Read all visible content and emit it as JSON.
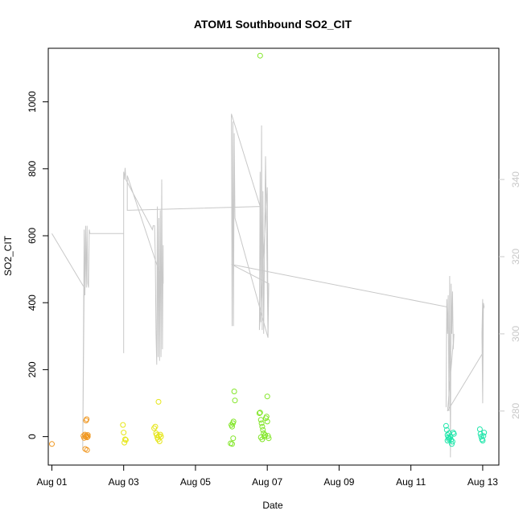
{
  "chart_data": {
    "type": "scatter",
    "title": "ATOM1 Southbound SO2_CIT",
    "xlabel": "Date",
    "ylabel": "SO2_CIT",
    "xlim": [
      -0.1,
      12.45
    ],
    "ylim": [
      -85,
      1160
    ],
    "x_ticks": [
      {
        "v": 0,
        "label": "Aug 01"
      },
      {
        "v": 2,
        "label": "Aug 03"
      },
      {
        "v": 4,
        "label": "Aug 05"
      },
      {
        "v": 6,
        "label": "Aug 07"
      },
      {
        "v": 8,
        "label": "Aug 09"
      },
      {
        "v": 10,
        "label": "Aug 11"
      },
      {
        "v": 12,
        "label": "Aug 13"
      }
    ],
    "y_ticks": [
      0,
      200,
      400,
      600,
      800,
      1000
    ],
    "y2lim": [
      266,
      374
    ],
    "y2_ticks": [
      280,
      300,
      320,
      340
    ],
    "legend": "none",
    "grid": false,
    "scatter_series": [
      {
        "color": "#f0961e",
        "points": [
          [
            0.0,
            -22
          ],
          [
            0.88,
            2
          ],
          [
            0.9,
            -4
          ],
          [
            0.92,
            6
          ],
          [
            0.94,
            0
          ],
          [
            0.96,
            3
          ],
          [
            0.98,
            -2
          ],
          [
            1.0,
            5
          ],
          [
            0.93,
            -37
          ],
          [
            0.98,
            -40
          ],
          [
            0.95,
            48
          ],
          [
            0.97,
            52
          ],
          [
            1.0,
            0
          ]
        ]
      },
      {
        "color": "#e6e619",
        "points": [
          [
            1.98,
            35
          ],
          [
            2.0,
            12
          ],
          [
            2.02,
            -18
          ],
          [
            2.04,
            -8
          ],
          [
            2.06,
            -10
          ],
          [
            2.85,
            25
          ],
          [
            2.88,
            30
          ],
          [
            2.9,
            10
          ],
          [
            2.92,
            5
          ],
          [
            2.94,
            -3
          ],
          [
            2.96,
            -8
          ],
          [
            2.98,
            2
          ],
          [
            3.0,
            -14
          ],
          [
            3.02,
            6
          ],
          [
            3.04,
            0
          ],
          [
            2.97,
            104
          ]
        ]
      },
      {
        "color": "#82e628",
        "points": [
          [
            5.0,
            35
          ],
          [
            5.02,
            30
          ],
          [
            5.04,
            40
          ],
          [
            5.06,
            45
          ],
          [
            5.08,
            135
          ],
          [
            5.1,
            108
          ],
          [
            4.98,
            -20
          ],
          [
            5.02,
            -22
          ],
          [
            5.05,
            -5
          ],
          [
            5.8,
            1138
          ],
          [
            5.78,
            70
          ],
          [
            5.8,
            72
          ],
          [
            5.82,
            50
          ],
          [
            5.84,
            40
          ],
          [
            5.86,
            30
          ],
          [
            5.88,
            20
          ],
          [
            5.9,
            10
          ],
          [
            5.92,
            0
          ],
          [
            5.94,
            5
          ],
          [
            5.96,
            55
          ],
          [
            5.98,
            60
          ],
          [
            6.0,
            120
          ],
          [
            6.02,
            2
          ],
          [
            6.04,
            -5
          ],
          [
            5.82,
            -2
          ],
          [
            5.86,
            -8
          ],
          [
            6.0,
            45
          ]
        ]
      },
      {
        "color": "#1ee6aa",
        "points": [
          [
            10.98,
            32
          ],
          [
            11.0,
            20
          ],
          [
            11.02,
            5
          ],
          [
            11.04,
            -2
          ],
          [
            11.06,
            10
          ],
          [
            11.08,
            -5
          ],
          [
            11.1,
            0
          ],
          [
            11.12,
            -10
          ],
          [
            11.14,
            -22
          ],
          [
            11.16,
            -15
          ],
          [
            11.18,
            12
          ],
          [
            11.2,
            8
          ],
          [
            11.02,
            -12
          ],
          [
            11.06,
            -8
          ],
          [
            11.92,
            22
          ],
          [
            11.94,
            8
          ],
          [
            11.96,
            0
          ],
          [
            11.98,
            -8
          ],
          [
            12.0,
            -12
          ],
          [
            12.02,
            2
          ],
          [
            12.04,
            12
          ]
        ]
      }
    ],
    "line_series": {
      "color": "#c8c8c8",
      "axis": "right",
      "points": [
        [
          0.0,
          326
        ],
        [
          0.9,
          312
        ],
        [
          0.9,
          312
        ],
        [
          0.86,
          270
        ],
        [
          0.9,
          327
        ],
        [
          0.92,
          310
        ],
        [
          0.94,
          328
        ],
        [
          0.96,
          312
        ],
        [
          0.98,
          328
        ],
        [
          1.0,
          313
        ],
        [
          1.02,
          312
        ],
        [
          1.04,
          327
        ],
        [
          1.06,
          326
        ],
        [
          2.0,
          326
        ],
        [
          2.0,
          295
        ],
        [
          2.0,
          342
        ],
        [
          2.02,
          340
        ],
        [
          2.04,
          343
        ],
        [
          2.06,
          340
        ],
        [
          2.8,
          327
        ],
        [
          2.82,
          328
        ],
        [
          2.86,
          328
        ],
        [
          2.88,
          320
        ],
        [
          2.9,
          300
        ],
        [
          2.92,
          292
        ],
        [
          2.94,
          333
        ],
        [
          2.96,
          294
        ],
        [
          2.98,
          330
        ],
        [
          3.0,
          293
        ],
        [
          3.02,
          332
        ],
        [
          3.04,
          294
        ],
        [
          3.06,
          340
        ],
        [
          3.08,
          296
        ],
        [
          3.1,
          323
        ],
        [
          3.1,
          313
        ],
        [
          2.1,
          341
        ],
        [
          2.1,
          332
        ],
        [
          5.8,
          333
        ],
        [
          5.0,
          357
        ],
        [
          5.02,
          302
        ],
        [
          5.04,
          355
        ],
        [
          5.06,
          302
        ],
        [
          5.08,
          352
        ],
        [
          5.1,
          330
        ],
        [
          6.02,
          299
        ],
        [
          6.0,
          313
        ],
        [
          5.95,
          346
        ],
        [
          5.9,
          300
        ],
        [
          5.88,
          337
        ],
        [
          5.86,
          301
        ],
        [
          5.84,
          354
        ],
        [
          5.82,
          303
        ],
        [
          5.8,
          342
        ],
        [
          5.78,
          301
        ],
        [
          6.0,
          338
        ],
        [
          6.02,
          299
        ],
        [
          6.04,
          313
        ],
        [
          5.0,
          318
        ],
        [
          11.0,
          307
        ],
        [
          10.98,
          281
        ],
        [
          11.0,
          309
        ],
        [
          11.02,
          300
        ],
        [
          11.04,
          310
        ],
        [
          11.06,
          280
        ],
        [
          11.08,
          315
        ],
        [
          11.1,
          268
        ],
        [
          11.12,
          313
        ],
        [
          11.14,
          300
        ],
        [
          11.16,
          311
        ],
        [
          11.18,
          296
        ],
        [
          11.2,
          300
        ],
        [
          11.02,
          280
        ],
        [
          12.0,
          295
        ],
        [
          12.0,
          309
        ],
        [
          11.98,
          300
        ],
        [
          12.0,
          282
        ],
        [
          12.02,
          308
        ],
        [
          12.04,
          307
        ],
        [
          12.0,
          306
        ]
      ]
    }
  }
}
